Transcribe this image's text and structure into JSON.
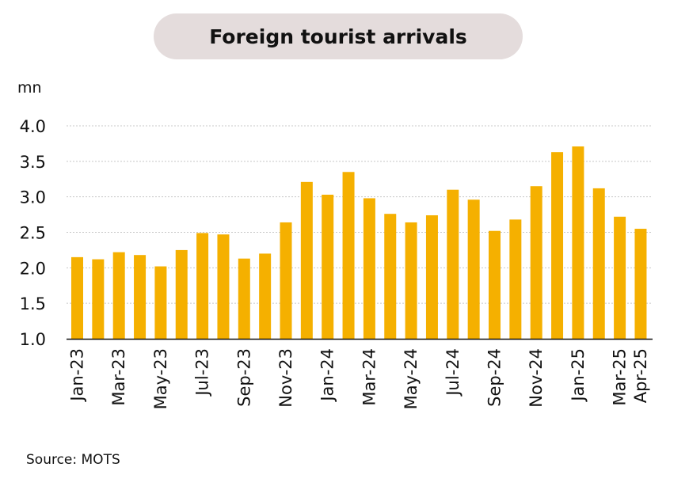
{
  "colors": {
    "bar": "#f5b000",
    "grid": "#c8c8c8",
    "axis": "#111111",
    "pill": "#e4dcdc"
  },
  "source_text": "Source: MOTS",
  "chart_data": {
    "type": "bar",
    "title": "Foreign tourist arrivals",
    "ylabel": "mn",
    "ylim": [
      1.0,
      4.0
    ],
    "yticks": [
      "1.0",
      "1.5",
      "2.0",
      "2.5",
      "3.0",
      "3.5",
      "4.0"
    ],
    "grid": true,
    "categories": [
      "Jan-23",
      "Feb-23",
      "Mar-23",
      "Apr-23",
      "May-23",
      "Jun-23",
      "Jul-23",
      "Aug-23",
      "Sep-23",
      "Oct-23",
      "Nov-23",
      "Dec-23",
      "Jan-24",
      "Feb-24",
      "Mar-24",
      "Apr-24",
      "May-24",
      "Jun-24",
      "Jul-24",
      "Aug-24",
      "Sep-24",
      "Oct-24",
      "Nov-24",
      "Dec-24",
      "Jan-25",
      "Feb-25",
      "Mar-25",
      "Apr-25"
    ],
    "xtick_labels": [
      "Jan-23",
      "",
      "Mar-23",
      "",
      "May-23",
      "",
      "Jul-23",
      "",
      "Sep-23",
      "",
      "Nov-23",
      "",
      "Jan-24",
      "",
      "Mar-24",
      "",
      "May-24",
      "",
      "Jul-24",
      "",
      "Sep-24",
      "",
      "Nov-24",
      "",
      "Jan-25",
      "",
      "Mar-25",
      "Apr-25"
    ],
    "values": [
      2.15,
      2.12,
      2.22,
      2.18,
      2.02,
      2.25,
      2.49,
      2.47,
      2.13,
      2.2,
      2.64,
      3.21,
      3.03,
      3.35,
      2.98,
      2.76,
      2.64,
      2.74,
      3.1,
      2.96,
      2.52,
      2.68,
      3.15,
      3.63,
      3.71,
      3.12,
      2.72,
      2.55
    ]
  }
}
